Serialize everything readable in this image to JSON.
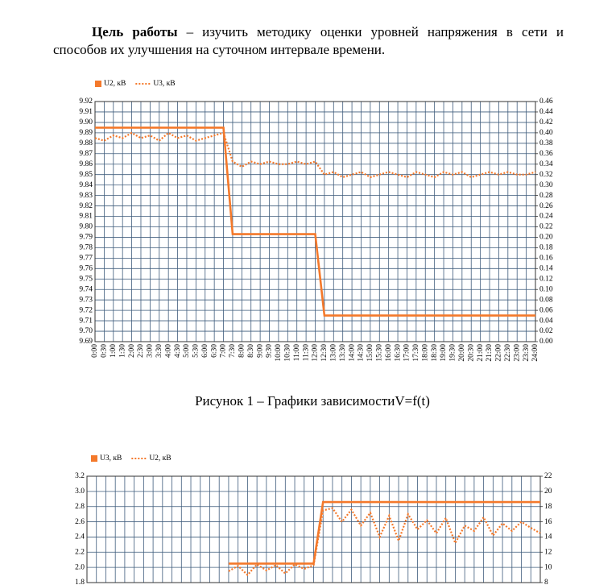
{
  "paragraph": {
    "bold": "Цель работы",
    "text": " – изучить методику оценки уровней напряжения в сети и способов их улучшения на суточном интервале времени."
  },
  "caption": "Рисунок 1 – Графики зависимостиV=f(t)",
  "chart_data": [
    {
      "type": "line",
      "categories": [
        "0:00",
        "0:30",
        "1:00",
        "1:30",
        "2:00",
        "2:30",
        "3:00",
        "3:30",
        "4:00",
        "4:30",
        "5:00",
        "5:30",
        "6:00",
        "6:30",
        "7:00",
        "7:30",
        "8:00",
        "8:30",
        "9:00",
        "9:30",
        "10:00",
        "10:30",
        "11:00",
        "11:30",
        "12:00",
        "12:30",
        "13:00",
        "13:30",
        "14:00",
        "14:30",
        "15:00",
        "15:30",
        "16:00",
        "16:30",
        "17:00",
        "17:30",
        "18:00",
        "18:30",
        "19:00",
        "19:30",
        "20:00",
        "20:30",
        "21:00",
        "21:30",
        "22:00",
        "22:30",
        "23:00",
        "23:30",
        "24:00"
      ],
      "ylim": [
        9.69,
        9.92
      ],
      "yticks": [
        9.69,
        {
          "value": 9.7,
          "label": "9.70"
        },
        9.71,
        9.72,
        9.73,
        9.74,
        9.75,
        9.76,
        9.77,
        9.78,
        9.79,
        {
          "value": 9.8,
          "label": "9.80"
        },
        9.81,
        9.82,
        9.83,
        9.84,
        9.85,
        9.86,
        9.87,
        9.88,
        9.89,
        {
          "value": 9.9,
          "label": "9.90"
        },
        9.91,
        9.92
      ],
      "y2lim": [
        0,
        0.46
      ],
      "y2ticks": [
        {
          "value": 0,
          "label": "0.00"
        },
        0.02,
        0.04,
        0.06,
        0.08,
        {
          "value": 0.1,
          "label": "0.10"
        },
        0.12,
        0.14,
        0.16,
        0.18,
        {
          "value": 0.2,
          "label": "0.20"
        },
        0.22,
        0.24,
        0.26,
        0.28,
        {
          "value": 0.3,
          "label": "0.30"
        },
        0.32,
        0.34,
        0.36,
        0.38,
        {
          "value": 0.4,
          "label": "0.40"
        },
        0.42,
        0.44,
        0.46
      ],
      "grid": true,
      "series": [
        {
          "name": "U2, кВ",
          "color": "#f4792b",
          "line_style": "solid",
          "axis": "y",
          "values": [
            9.895,
            9.895,
            9.895,
            9.895,
            9.895,
            9.895,
            9.895,
            9.895,
            9.895,
            9.895,
            9.895,
            9.895,
            9.895,
            9.895,
            9.895,
            9.793,
            9.793,
            9.793,
            9.793,
            9.793,
            9.793,
            9.793,
            9.793,
            9.793,
            9.793,
            9.715,
            9.715,
            9.715,
            9.715,
            9.715,
            9.715,
            9.715,
            9.715,
            9.715,
            9.715,
            9.715,
            9.715,
            9.715,
            9.715,
            9.715,
            9.715,
            9.715,
            9.715,
            9.715,
            9.715,
            9.715,
            9.715,
            9.715,
            9.715
          ]
        },
        {
          "name": "U3, кВ",
          "color": "#f4792b",
          "line_style": "dotted",
          "axis": "y2",
          "values": [
            0.39,
            0.385,
            0.395,
            0.39,
            0.4,
            0.39,
            0.395,
            0.385,
            0.4,
            0.39,
            0.395,
            0.385,
            0.39,
            0.395,
            0.4,
            0.345,
            0.335,
            0.345,
            0.34,
            0.345,
            0.34,
            0.34,
            0.345,
            0.34,
            0.345,
            0.32,
            0.325,
            0.315,
            0.32,
            0.325,
            0.315,
            0.32,
            0.325,
            0.32,
            0.315,
            0.325,
            0.32,
            0.315,
            0.325,
            0.32,
            0.325,
            0.315,
            0.32,
            0.325,
            0.32,
            0.325,
            0.32,
            0.32,
            0.325
          ]
        }
      ]
    },
    {
      "type": "line",
      "categories": [
        null,
        null,
        null,
        null,
        null,
        null,
        null,
        null,
        null,
        null,
        null,
        null,
        null,
        null,
        null,
        null,
        null,
        null,
        null,
        null,
        null,
        null,
        null,
        null,
        null,
        null,
        null,
        null,
        null,
        null,
        null,
        null,
        null,
        null,
        null,
        null,
        null,
        null,
        null,
        null,
        null,
        null,
        null,
        null,
        null,
        null,
        null,
        null,
        null
      ],
      "ylim": [
        1.8,
        3.2
      ],
      "yticks": [
        1.8,
        {
          "value": 2,
          "label": "2.0"
        },
        2.2,
        2.4,
        2.6,
        2.8,
        {
          "value": 3,
          "label": "3.0"
        },
        3.2
      ],
      "y2lim": [
        8,
        22
      ],
      "y2ticks": [
        8,
        10,
        12,
        14,
        16,
        18,
        20,
        22
      ],
      "grid": true,
      "series": [
        {
          "name": "U3, кВ",
          "color": "#f4792b",
          "line_style": "solid",
          "axis": "y",
          "values": [
            null,
            null,
            null,
            null,
            null,
            null,
            null,
            null,
            null,
            null,
            null,
            null,
            null,
            null,
            null,
            2.05,
            2.05,
            2.05,
            2.05,
            2.05,
            2.05,
            2.05,
            2.05,
            2.05,
            2.05,
            2.86,
            2.86,
            2.86,
            2.86,
            2.86,
            2.86,
            2.86,
            2.86,
            2.86,
            2.86,
            2.86,
            2.86,
            2.86,
            2.86,
            2.86,
            2.86,
            2.86,
            2.86,
            2.86,
            2.86,
            2.86,
            2.86,
            2.86,
            2.86
          ]
        },
        {
          "name": "U2, кВ",
          "color": "#f4792b",
          "line_style": "dotted",
          "axis": "y2",
          "values": [
            null,
            null,
            null,
            null,
            null,
            null,
            null,
            null,
            null,
            null,
            null,
            null,
            null,
            null,
            null,
            9.5,
            10.2,
            9,
            10.4,
            9.6,
            10.3,
            9.2,
            10.4,
            9.8,
            10.3,
            17.5,
            17.8,
            16,
            17.6,
            15.5,
            17.2,
            14,
            16.8,
            13.5,
            17,
            15,
            16.2,
            14.5,
            16.5,
            13.2,
            15.5,
            14.8,
            16.6,
            14.2,
            15.8,
            14.8,
            16,
            15.2,
            14.5
          ]
        }
      ]
    }
  ]
}
